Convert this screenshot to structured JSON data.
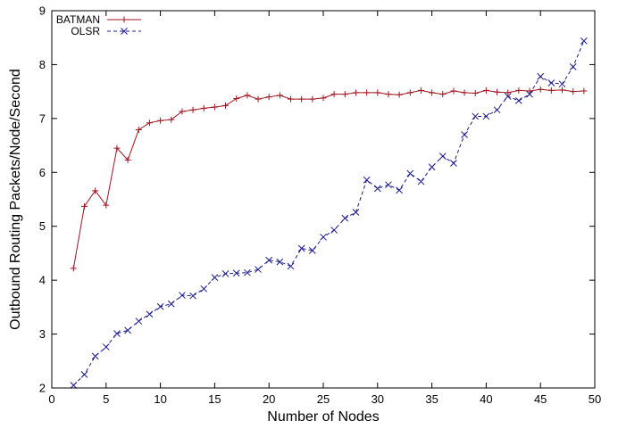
{
  "chart_data": {
    "type": "line",
    "xlabel": "Number of Nodes",
    "ylabel": "Outbound Routing Packets/Node/Second",
    "xlim": [
      0,
      50
    ],
    "ylim": [
      2,
      9
    ],
    "xticks": [
      "0",
      "5",
      "10",
      "15",
      "20",
      "25",
      "30",
      "35",
      "40",
      "45",
      "50"
    ],
    "yticks": [
      "2",
      "3",
      "4",
      "5",
      "6",
      "7",
      "8",
      "9"
    ],
    "grid": false,
    "legend_position": "top-left",
    "series": [
      {
        "name": "BATMAN",
        "color": "#a0141e",
        "marker": "plus",
        "dash": "solid",
        "x": [
          2,
          3,
          4,
          5,
          6,
          7,
          8,
          9,
          10,
          11,
          12,
          13,
          14,
          15,
          16,
          17,
          18,
          19,
          20,
          21,
          22,
          23,
          24,
          25,
          26,
          27,
          28,
          29,
          30,
          31,
          32,
          33,
          34,
          35,
          36,
          37,
          38,
          39,
          40,
          41,
          42,
          43,
          44,
          45,
          46,
          47,
          48,
          49
        ],
        "y": [
          4.22,
          5.37,
          5.66,
          5.39,
          6.45,
          6.23,
          6.79,
          6.92,
          6.96,
          6.98,
          7.13,
          7.16,
          7.19,
          7.21,
          7.24,
          7.37,
          7.43,
          7.36,
          7.4,
          7.43,
          7.36,
          7.36,
          7.36,
          7.38,
          7.45,
          7.45,
          7.48,
          7.48,
          7.48,
          7.45,
          7.44,
          7.48,
          7.52,
          7.48,
          7.45,
          7.51,
          7.48,
          7.47,
          7.52,
          7.49,
          7.48,
          7.52,
          7.51,
          7.54,
          7.52,
          7.53,
          7.5,
          7.51
        ]
      },
      {
        "name": "OLSR",
        "color": "#1a1a8c",
        "marker": "x",
        "dash": "dashed",
        "x": [
          2,
          3,
          4,
          5,
          6,
          7,
          8,
          9,
          10,
          11,
          12,
          13,
          14,
          15,
          16,
          17,
          18,
          19,
          20,
          21,
          22,
          23,
          24,
          25,
          26,
          27,
          28,
          29,
          30,
          31,
          32,
          33,
          34,
          35,
          36,
          37,
          38,
          39,
          40,
          41,
          42,
          43,
          44,
          45,
          46,
          47,
          48,
          49
        ],
        "y": [
          2.05,
          2.25,
          2.59,
          2.76,
          3.01,
          3.07,
          3.24,
          3.37,
          3.51,
          3.56,
          3.72,
          3.71,
          3.84,
          4.05,
          4.12,
          4.13,
          4.14,
          4.2,
          4.37,
          4.34,
          4.26,
          4.59,
          4.55,
          4.8,
          4.93,
          5.15,
          5.26,
          5.86,
          5.7,
          5.77,
          5.67,
          5.98,
          5.83,
          6.1,
          6.3,
          6.17,
          6.7,
          7.04,
          7.04,
          7.16,
          7.41,
          7.33,
          7.45,
          7.78,
          7.66,
          7.64,
          7.96,
          8.44
        ]
      }
    ]
  }
}
